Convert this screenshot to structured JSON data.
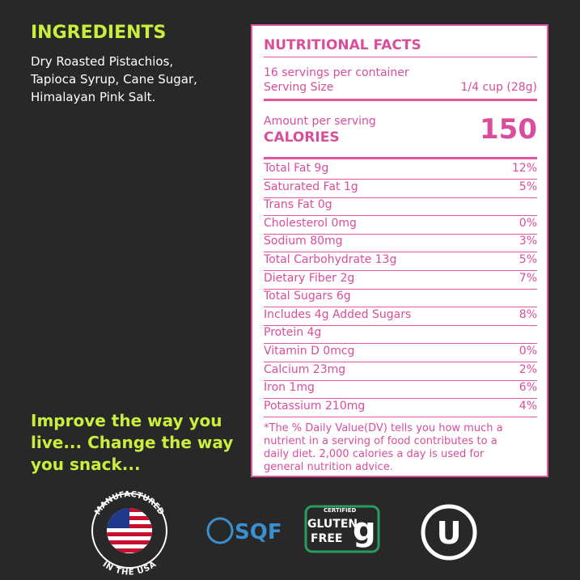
{
  "ingredients": {
    "title": "INGREDIENTS",
    "lines": [
      "Dry Roasted Pistachios,",
      "Tapioca Syrup, Cane Sugar,",
      "Himalayan Pink Salt."
    ]
  },
  "slogan": [
    "Improve the way you",
    "live... Change the way",
    "you snack..."
  ],
  "nutrition": {
    "title": "NUTRITIONAL FACTS",
    "servings": "16 servings per container",
    "serving_size_label": "Serving Size",
    "serving_size": "1/4 cup (28g)",
    "amount_label": "Amount per serving",
    "calories_label": "CALORIES",
    "calories": 150,
    "rows": [
      {
        "name": "Total Fat 9g",
        "dv": "12%"
      },
      {
        "name": "Saturated Fat 1g",
        "dv": "5%"
      },
      {
        "name": "Trans Fat 0g"
      },
      {
        "name": "Cholesterol 0mg",
        "dv": "0%"
      },
      {
        "name": "Sodium 80mg",
        "dv": "3%"
      },
      {
        "name": "Total Carbohydrate 13g",
        "dv": "5%"
      },
      {
        "name": "Dietary Fiber 2g",
        "dv": "7%"
      },
      {
        "name": "Total Sugars 6g"
      },
      {
        "name": "Includes 4g Added Sugars",
        "dv": "8%"
      },
      {
        "name": "Protein 4g"
      },
      {
        "name": "Vitamin D 0mcg",
        "dv": "0%"
      },
      {
        "name": "Calcium 23mg",
        "dv": "2%"
      },
      {
        "name": "Iron 1mg",
        "dv": "6%"
      },
      {
        "name": "Potassium 210mg",
        "dv": "4%"
      }
    ],
    "footnote": [
      "*The % Daily Value(DV) tells you how much a",
      "nutrient in a serving of food contributes to a",
      "daily diet. 2,000 calories a day is used for",
      "general nutrition advice."
    ]
  },
  "badges": {
    "usa_top": "MANUFACTURED",
    "usa_bottom": "IN THE USA",
    "sqf": "SQF",
    "gf_certified": "CERTIFIED",
    "gf_gluten": "GLUTEN",
    "gf_free": "FREE",
    "kosher": "U"
  }
}
